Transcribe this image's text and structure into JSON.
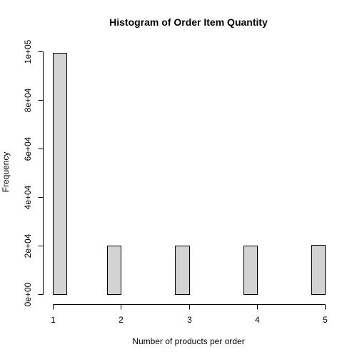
{
  "chart_data": {
    "type": "bar",
    "title": "Histogram of Order Item Quantity",
    "xlabel": "Number of products per order",
    "ylabel": "Frequency",
    "bins": [
      {
        "x0": 1.0,
        "x1": 1.2,
        "count": 99500
      },
      {
        "x0": 1.2,
        "x1": 1.4,
        "count": 0
      },
      {
        "x0": 1.4,
        "x1": 1.6,
        "count": 0
      },
      {
        "x0": 1.6,
        "x1": 1.8,
        "count": 0
      },
      {
        "x0": 1.8,
        "x1": 2.0,
        "count": 20000
      },
      {
        "x0": 2.0,
        "x1": 2.2,
        "count": 0
      },
      {
        "x0": 2.2,
        "x1": 2.4,
        "count": 0
      },
      {
        "x0": 2.4,
        "x1": 2.6,
        "count": 0
      },
      {
        "x0": 2.6,
        "x1": 2.8,
        "count": 0
      },
      {
        "x0": 2.8,
        "x1": 3.0,
        "count": 20000
      },
      {
        "x0": 3.0,
        "x1": 3.2,
        "count": 0
      },
      {
        "x0": 3.2,
        "x1": 3.4,
        "count": 0
      },
      {
        "x0": 3.4,
        "x1": 3.6,
        "count": 0
      },
      {
        "x0": 3.6,
        "x1": 3.8,
        "count": 0
      },
      {
        "x0": 3.8,
        "x1": 4.0,
        "count": 20000
      },
      {
        "x0": 4.0,
        "x1": 4.2,
        "count": 0
      },
      {
        "x0": 4.2,
        "x1": 4.4,
        "count": 0
      },
      {
        "x0": 4.4,
        "x1": 4.6,
        "count": 0
      },
      {
        "x0": 4.6,
        "x1": 4.8,
        "count": 0
      },
      {
        "x0": 4.8,
        "x1": 5.0,
        "count": 20200
      }
    ],
    "xlim": [
      1,
      5
    ],
    "ylim": [
      0,
      100000
    ],
    "xticks": [
      1,
      2,
      3,
      4,
      5
    ],
    "xtick_labels": [
      "1",
      "2",
      "3",
      "4",
      "5"
    ],
    "yticks": [
      0,
      20000,
      40000,
      60000,
      80000,
      100000
    ],
    "ytick_labels": [
      "0e+00",
      "2e+04",
      "4e+04",
      "6e+04",
      "8e+04",
      "1e+05"
    ],
    "grid": false,
    "colors": {
      "bar_fill": "#d3d3d3",
      "bar_stroke": "#000000",
      "axis": "#000000",
      "background": "#ffffff"
    }
  }
}
